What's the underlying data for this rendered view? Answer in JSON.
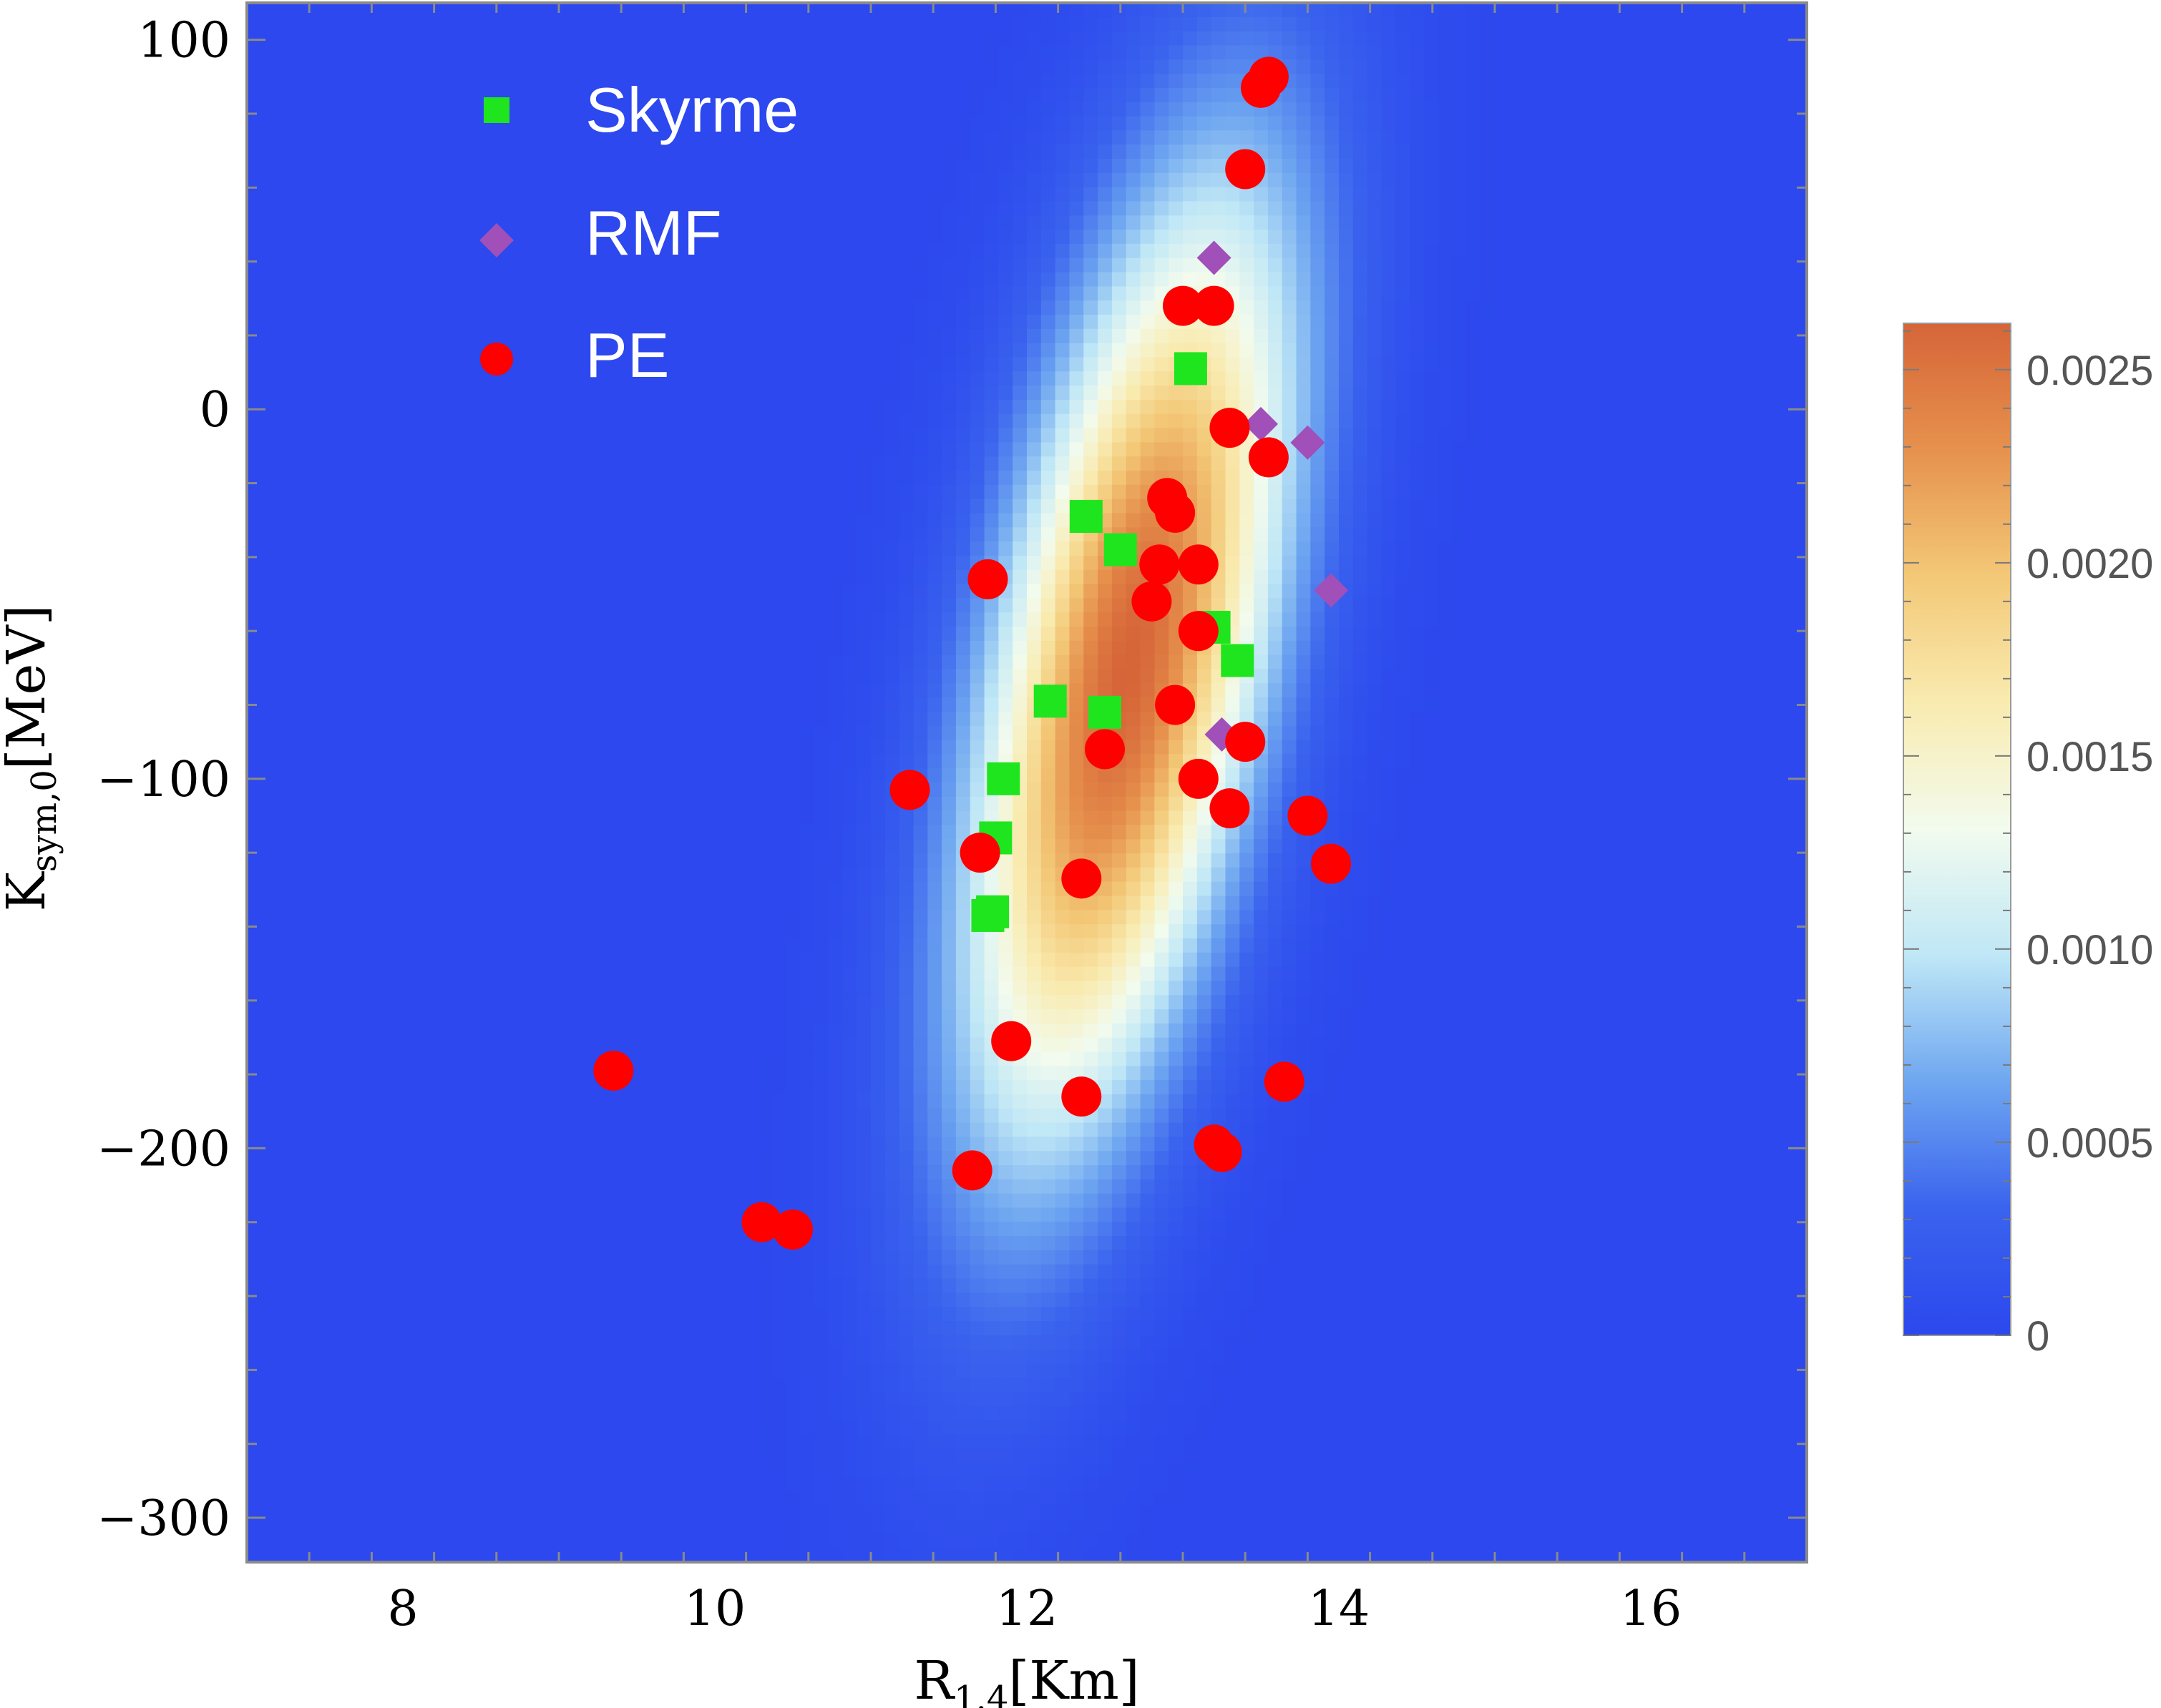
{
  "chart_data": {
    "type": "scatter",
    "title": "",
    "xlabel": {
      "main": "R",
      "sub": "1.4",
      "rest": "[Km]"
    },
    "ylabel": {
      "main": "K",
      "sub": "sym,0",
      "rest": "[MeV]"
    },
    "xlim": [
      7,
      17
    ],
    "ylim": [
      -312,
      110
    ],
    "xticks": [
      8,
      10,
      12,
      14,
      16
    ],
    "yticks": [
      100,
      0,
      -100,
      -200,
      -300
    ],
    "xtick_labels": [
      "8",
      "10",
      "12",
      "14",
      "16"
    ],
    "ytick_labels": [
      "100",
      "0",
      "−100",
      "−200",
      "−300"
    ],
    "background_density": {
      "type": "heatmap",
      "description_values": "bivariate Gaussian density",
      "center": [
        12.65,
        -70
      ],
      "sigma_x": 0.72,
      "sigma_y": 90,
      "rho": 0.55,
      "peak": 0.00262
    },
    "colorbar": {
      "min": 0,
      "max": 0.00262,
      "ticks": [
        0,
        0.0005,
        0.001,
        0.0015,
        0.002,
        0.0025
      ],
      "tick_labels": [
        "0",
        "0.0005",
        "0.0010",
        "0.0015",
        "0.0020",
        "0.0025"
      ],
      "colors": [
        "#2c48ee",
        "#3a63ee",
        "#6ea6f0",
        "#bfe7f6",
        "#f2fbee",
        "#f9ebb0",
        "#f3c877",
        "#e6914d",
        "#d66538"
      ]
    },
    "legend": {
      "position": "top-left"
    },
    "series": [
      {
        "name": "Skyrme",
        "marker": "square",
        "color": "#1ee51e",
        "points": [
          [
            13.05,
            11
          ],
          [
            12.38,
            -29
          ],
          [
            12.6,
            -38
          ],
          [
            13.2,
            -59
          ],
          [
            13.35,
            -68
          ],
          [
            12.15,
            -79
          ],
          [
            12.5,
            -82
          ],
          [
            11.85,
            -100
          ],
          [
            11.8,
            -116
          ],
          [
            11.75,
            -137
          ],
          [
            11.78,
            -136
          ]
        ]
      },
      {
        "name": "RMF",
        "marker": "diamond",
        "color": "#a050b8",
        "points": [
          [
            13.2,
            41
          ],
          [
            13.5,
            -4
          ],
          [
            13.8,
            -9
          ],
          [
            13.95,
            -49
          ],
          [
            13.25,
            -88
          ]
        ]
      },
      {
        "name": "PE",
        "marker": "circle",
        "color": "#ff0000",
        "points": [
          [
            13.55,
            90
          ],
          [
            13.5,
            87
          ],
          [
            13.4,
            65
          ],
          [
            13.0,
            28
          ],
          [
            13.2,
            28
          ],
          [
            13.3,
            -5
          ],
          [
            13.55,
            -13
          ],
          [
            12.9,
            -24
          ],
          [
            12.95,
            -28
          ],
          [
            12.85,
            -42
          ],
          [
            13.1,
            -42
          ],
          [
            11.75,
            -46
          ],
          [
            12.8,
            -52
          ],
          [
            13.1,
            -60
          ],
          [
            12.95,
            -80
          ],
          [
            13.4,
            -90
          ],
          [
            12.5,
            -92
          ],
          [
            13.1,
            -100
          ],
          [
            11.25,
            -103
          ],
          [
            13.3,
            -108
          ],
          [
            13.8,
            -110
          ],
          [
            11.7,
            -120
          ],
          [
            13.95,
            -123
          ],
          [
            12.35,
            -127
          ],
          [
            11.9,
            -171
          ],
          [
            9.35,
            -179
          ],
          [
            13.65,
            -182
          ],
          [
            12.35,
            -186
          ],
          [
            13.2,
            -199
          ],
          [
            13.25,
            -201
          ],
          [
            11.65,
            -206
          ],
          [
            10.3,
            -220
          ],
          [
            10.5,
            -222
          ]
        ]
      }
    ]
  }
}
